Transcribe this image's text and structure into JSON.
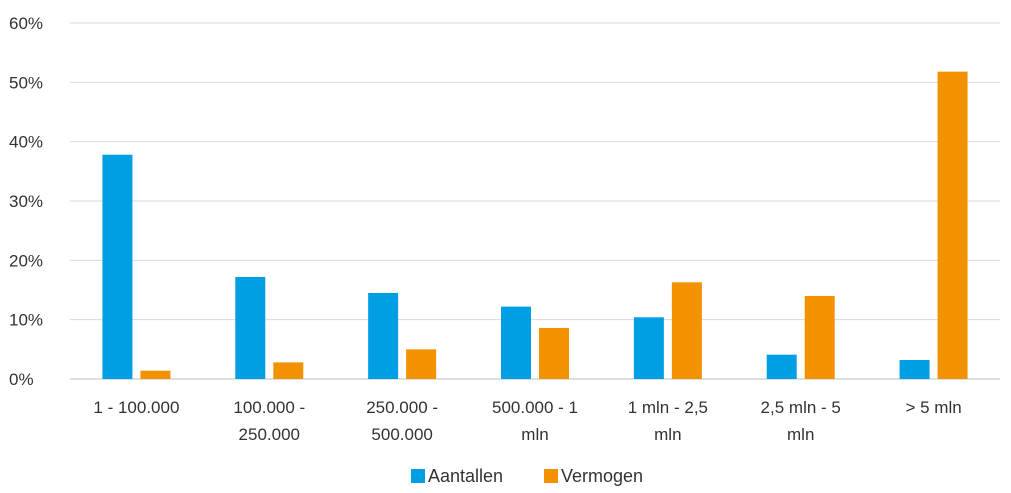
{
  "chart_data": {
    "type": "bar",
    "categories": [
      [
        "1 - 100.000"
      ],
      [
        "100.000 -",
        "250.000"
      ],
      [
        "250.000 -",
        "500.000"
      ],
      [
        "500.000 - 1",
        "mln"
      ],
      [
        "1 mln - 2,5",
        "mln"
      ],
      [
        "2,5 mln - 5",
        "mln"
      ],
      [
        "> 5 mln"
      ]
    ],
    "series": [
      {
        "name": "Aantallen",
        "color": "#009fe3",
        "values": [
          37.8,
          17.2,
          14.5,
          12.2,
          10.4,
          4.1,
          3.2
        ]
      },
      {
        "name": "Vermogen",
        "color": "#f39200",
        "values": [
          1.4,
          2.8,
          5.0,
          8.6,
          16.3,
          14.0,
          51.8
        ]
      }
    ],
    "ylim": [
      0,
      60
    ],
    "yticks": [
      0,
      10,
      20,
      30,
      40,
      50,
      60
    ],
    "ytick_labels": [
      "0%",
      "10%",
      "20%",
      "30%",
      "40%",
      "50%",
      "60%"
    ],
    "grid": true,
    "legend_position": "bottom",
    "title": "",
    "xlabel": "",
    "ylabel": ""
  }
}
